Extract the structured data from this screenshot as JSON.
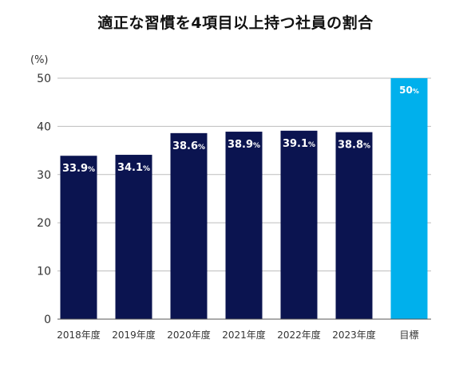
{
  "chart_data": {
    "type": "bar",
    "title": "適正な習慣を4項目以上持つ社員の割合",
    "ylabel": "(%)",
    "xlabel": "",
    "categories": [
      "2018年度",
      "2019年度",
      "2020年度",
      "2021年度",
      "2022年度",
      "2023年度",
      "目標"
    ],
    "values": [
      33.9,
      34.1,
      38.6,
      38.9,
      39.1,
      38.8,
      50
    ],
    "data_labels": [
      "33.9",
      "34.1",
      "38.6",
      "38.9",
      "39.1",
      "38.8",
      "50"
    ],
    "data_label_unit": "%",
    "ylim": [
      0,
      50
    ],
    "yticks": [
      "0",
      "10",
      "20",
      "30",
      "40",
      "50"
    ],
    "grid": true,
    "colors": {
      "actual": "#0b1450",
      "target": "#00b0ec",
      "grid": "#bdbdbd",
      "axis": "#555555"
    }
  }
}
